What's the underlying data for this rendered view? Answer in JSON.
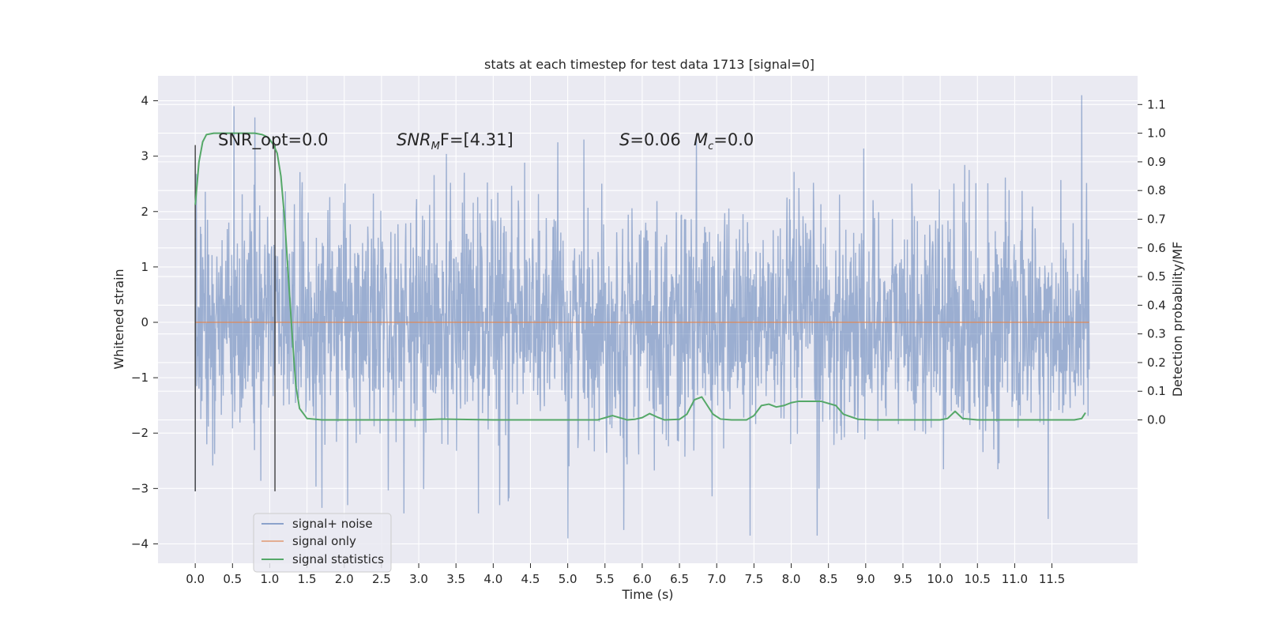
{
  "chart_data": {
    "type": "line",
    "title": "stats at each timestep for test data 1713 [signal=0]",
    "xlabel": "Time (s)",
    "ylabel": "Whitened strain",
    "y2label": "Detection probability/MF",
    "xlim": [
      -0.5,
      12.65
    ],
    "ylim": [
      -4.35,
      4.45
    ],
    "y2lim": [
      -0.5,
      1.2
    ],
    "xticks": [
      0.0,
      0.5,
      1.0,
      1.5,
      2.0,
      2.5,
      3.0,
      3.5,
      4.0,
      4.5,
      5.0,
      5.5,
      6.0,
      6.5,
      7.0,
      7.5,
      8.0,
      8.5,
      9.0,
      9.5,
      10.0,
      10.5,
      11.0,
      11.5
    ],
    "xtick_labels": [
      "0.0",
      "0.5",
      "1.0",
      "1.5",
      "2.0",
      "2.5",
      "3.0",
      "3.5",
      "4.0",
      "4.5",
      "5.0",
      "5.5",
      "6.0",
      "6.5",
      "7.0",
      "7.5",
      "8.0",
      "8.5",
      "9.0",
      "9.5",
      "10.0",
      "10.5",
      "11.0",
      "11.5"
    ],
    "yticks": [
      -4,
      -3,
      -2,
      -1,
      0,
      1,
      2,
      3,
      4
    ],
    "ytick_labels": [
      "−4",
      "−3",
      "−2",
      "−1",
      "0",
      "1",
      "2",
      "3",
      "4"
    ],
    "y2ticks": [
      0.0,
      0.1,
      0.2,
      0.3,
      0.4,
      0.5,
      0.6,
      0.7,
      0.8,
      0.9,
      1.0,
      1.1
    ],
    "y2tick_labels": [
      "0.0",
      "0.1",
      "0.2",
      "0.3",
      "0.4",
      "0.5",
      "0.6",
      "0.7",
      "0.8",
      "0.9",
      "1.0",
      "1.1"
    ],
    "grid": true,
    "legend_position": "lower-left",
    "series": [
      {
        "name": "signal+ noise",
        "color": "#4c72b0",
        "axis": "left",
        "description_values": {
          "x_range": [
            0.0,
            12.0
          ],
          "typical_band": [
            -2.0,
            2.0
          ],
          "extremes": [
            -3.9,
            4.1
          ]
        },
        "spikes": [
          [
            0.0,
            3.75
          ],
          [
            0.52,
            3.9
          ],
          [
            0.8,
            3.7
          ],
          [
            2.8,
            3.9
          ],
          [
            11.9,
            4.1
          ],
          [
            5.0,
            -3.9
          ],
          [
            7.45,
            -3.85
          ],
          [
            8.35,
            -3.85
          ],
          [
            5.75,
            -3.75
          ],
          [
            2.8,
            -3.45
          ],
          [
            11.45,
            -3.55
          ],
          [
            1.7,
            -3.35
          ],
          [
            3.8,
            -3.45
          ],
          [
            0.0,
            -3.05
          ]
        ]
      },
      {
        "name": "signal only",
        "color": "#dd8452",
        "axis": "left",
        "values_note": "zero",
        "x": [
          0.0,
          12.0
        ],
        "y": [
          0.0,
          0.0
        ]
      },
      {
        "name": "signal statistics",
        "color": "#55a868",
        "axis": "right",
        "x": [
          0.0,
          0.05,
          0.1,
          0.15,
          0.25,
          0.4,
          0.6,
          0.8,
          0.9,
          0.98,
          1.05,
          1.1,
          1.15,
          1.2,
          1.25,
          1.3,
          1.35,
          1.4,
          1.5,
          1.7,
          2.0,
          3.0,
          3.3,
          4.0,
          5.0,
          5.4,
          5.6,
          5.8,
          5.9,
          6.0,
          6.1,
          6.2,
          6.3,
          6.5,
          6.6,
          6.7,
          6.8,
          6.85,
          6.95,
          7.05,
          7.2,
          7.4,
          7.5,
          7.6,
          7.7,
          7.8,
          7.9,
          8.0,
          8.1,
          8.2,
          8.4,
          8.6,
          8.7,
          8.9,
          9.1,
          10.0,
          10.1,
          10.2,
          10.3,
          10.5,
          11.0,
          11.8,
          11.9,
          11.95
        ],
        "y": [
          0.75,
          0.9,
          0.97,
          0.995,
          1.0,
          1.0,
          1.0,
          1.0,
          0.995,
          0.985,
          0.96,
          0.93,
          0.85,
          0.7,
          0.5,
          0.3,
          0.12,
          0.04,
          0.005,
          0.0,
          0.0,
          0.0,
          0.003,
          0.0,
          0.0,
          0.0,
          0.015,
          0.0,
          0.002,
          0.008,
          0.022,
          0.01,
          0.0,
          0.002,
          0.02,
          0.07,
          0.08,
          0.06,
          0.02,
          0.003,
          0.0,
          0.0,
          0.015,
          0.05,
          0.055,
          0.045,
          0.05,
          0.06,
          0.065,
          0.065,
          0.065,
          0.05,
          0.02,
          0.002,
          0.0,
          0.0,
          0.005,
          0.03,
          0.005,
          0.0,
          0.0,
          0.0,
          0.005,
          0.025
        ]
      }
    ],
    "vlines": [
      0.0,
      1.07
    ],
    "annotations": [
      {
        "id": "snr-opt",
        "text": "SNR_opt=0.0",
        "x": 0.2,
        "y": 3.2
      },
      {
        "id": "snr-mf",
        "text": "SNR_MF=[4.31]",
        "x": 2.6,
        "y": 3.2
      },
      {
        "id": "s-value",
        "text": "S=0.06",
        "x": 5.6,
        "y": 3.2
      },
      {
        "id": "mc-value",
        "text": "M_c=0.0",
        "x": 6.6,
        "y": 3.2
      }
    ]
  },
  "annot_parts": {
    "snr_opt": "SNR_opt=0.0",
    "snr_mf_main": "SNR",
    "snr_mf_sub": "M",
    "snr_mf_rest": "F=[4.31]",
    "s_main": "S",
    "s_rest": "=0.06",
    "mc_main": "M",
    "mc_sub": "c",
    "mc_rest": "=0.0"
  },
  "legend": {
    "items": [
      {
        "label": "signal+ noise",
        "color": "#4c72b0"
      },
      {
        "label": "signal only",
        "color": "#dd8452"
      },
      {
        "label": "signal statistics",
        "color": "#55a868"
      }
    ]
  },
  "colors": {
    "plot_bg": "#eaeaf2",
    "grid": "#ffffff",
    "noise": "#4c72b0",
    "signal": "#dd8452",
    "stats": "#55a868",
    "vline": "#333333"
  }
}
